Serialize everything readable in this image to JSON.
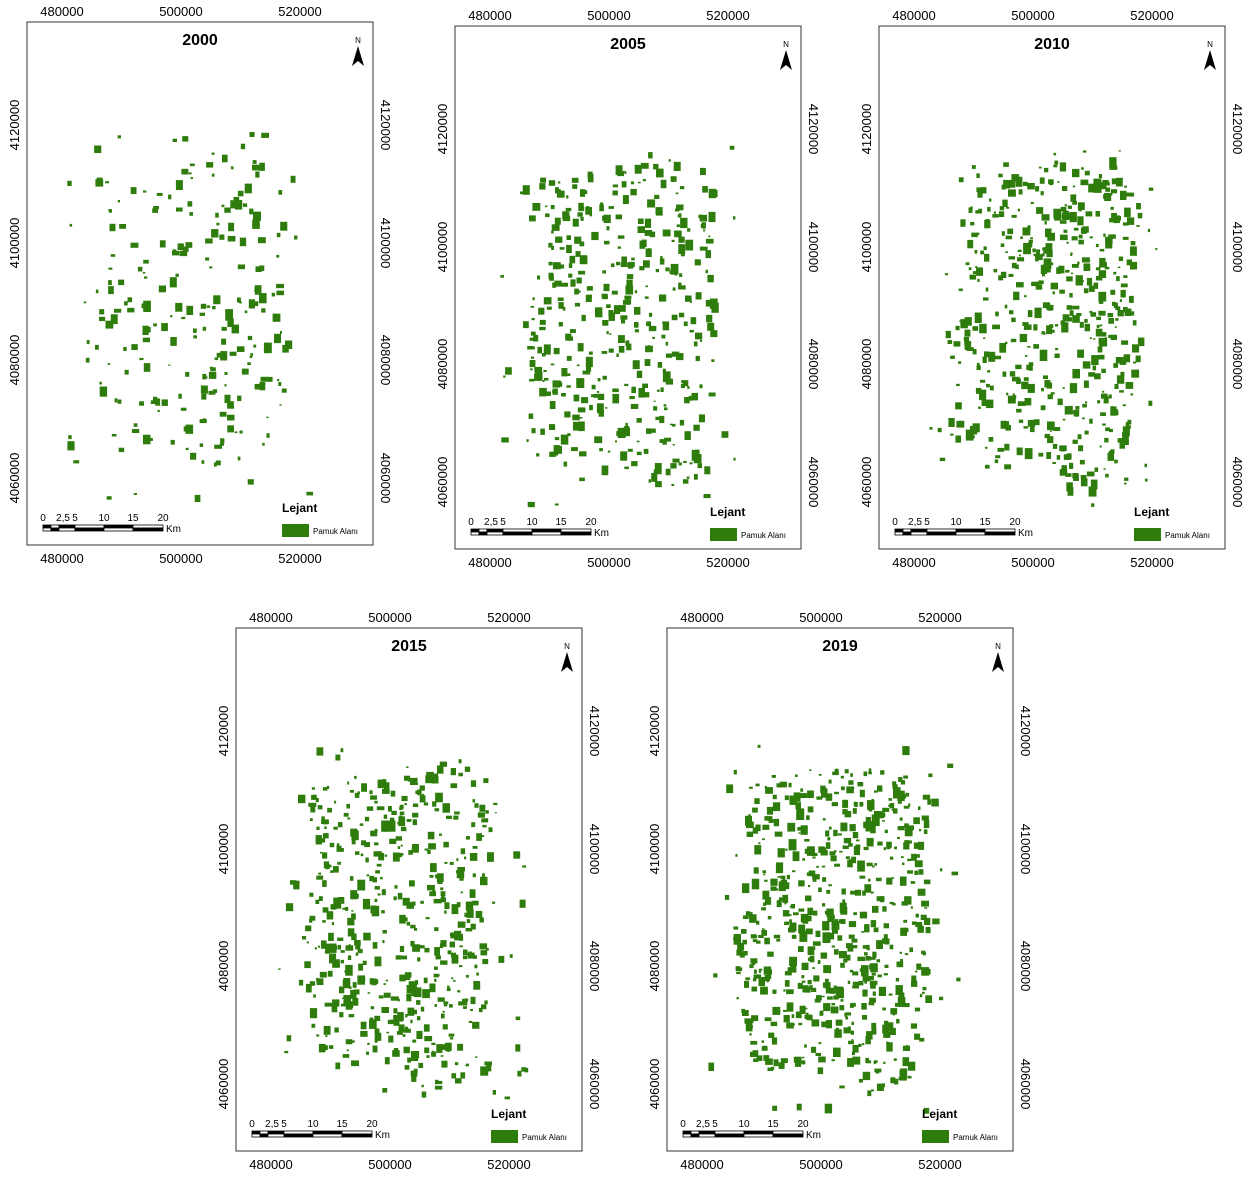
{
  "panels": [
    {
      "title": "2000"
    },
    {
      "title": "2005"
    },
    {
      "title": "2010"
    },
    {
      "title": "2015"
    },
    {
      "title": "2019"
    }
  ],
  "axes": {
    "x_ticks": [
      "480000",
      "500000",
      "520000"
    ],
    "y_ticks": [
      "4120000",
      "4100000",
      "4080000",
      "4060000"
    ]
  },
  "scale_bar": {
    "labels": [
      "0",
      "2,5",
      "5",
      "10",
      "15",
      "20"
    ],
    "unit": "Km"
  },
  "legend": {
    "title": "Lejant",
    "item": "Pamuk Alanı"
  },
  "north": "N"
}
